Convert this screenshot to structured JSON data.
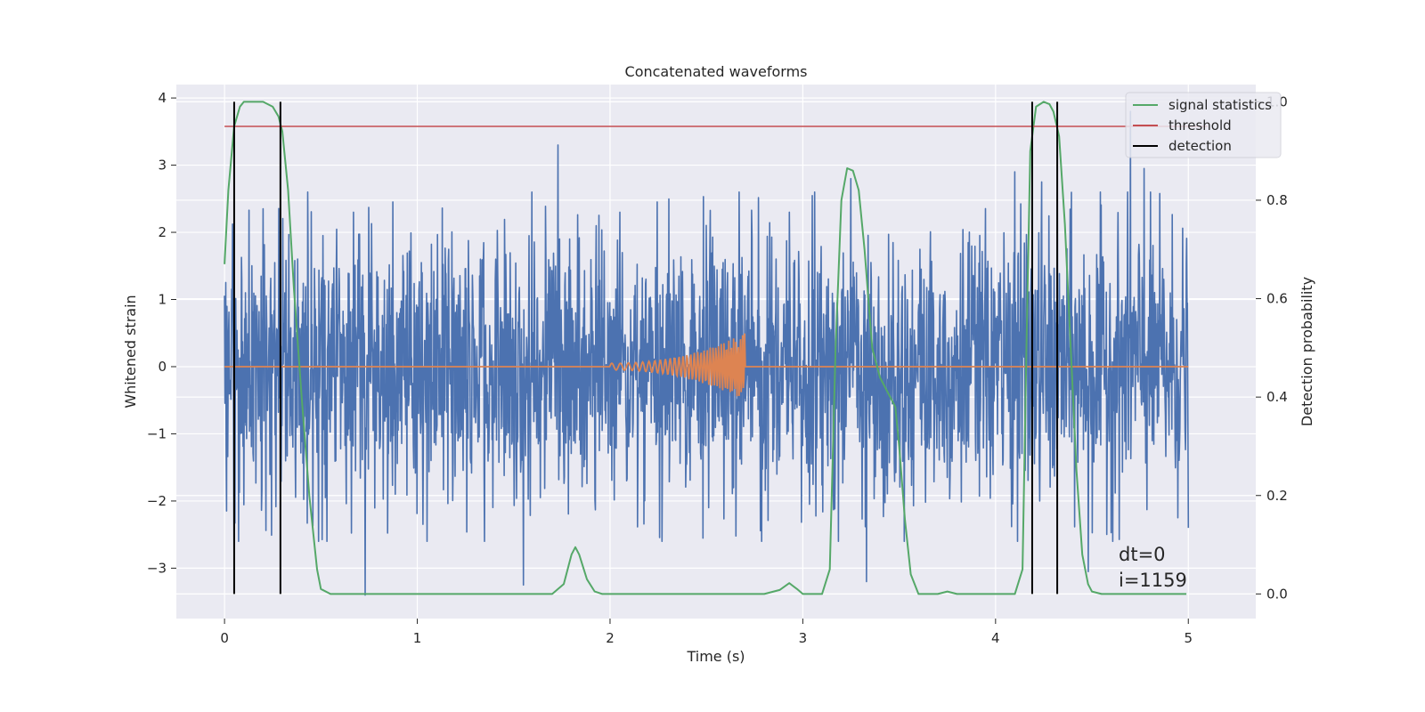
{
  "chart_data": {
    "type": "line",
    "title": "Concatenated waveforms",
    "xlabel": "Time (s)",
    "ylabel": "Whitened strain",
    "y2label": "Detection probability",
    "xlim": [
      -0.25,
      5.35
    ],
    "ylim": [
      -3.75,
      4.2
    ],
    "y2lim": [
      -0.05,
      1.035
    ],
    "x_ticks": [
      0,
      1,
      2,
      3,
      4,
      5
    ],
    "x_tick_labels": [
      "0",
      "1",
      "2",
      "3",
      "4",
      "5"
    ],
    "y_ticks": [
      -3,
      -2,
      -1,
      0,
      1,
      2,
      3,
      4
    ],
    "y_tick_labels": [
      "−3",
      "−2",
      "−1",
      "0",
      "1",
      "2",
      "3",
      "4"
    ],
    "y2_ticks": [
      0.0,
      0.2,
      0.4,
      0.6,
      0.8,
      1.0
    ],
    "y2_tick_labels": [
      "0.0",
      "0.2",
      "0.4",
      "0.6",
      "0.8",
      "1.0"
    ],
    "grid": true,
    "legend_position": "top-right",
    "legend": [
      "signal statistics",
      "threshold",
      "detection"
    ],
    "annotation": {
      "line1": "dt=0",
      "line2": "i=1159"
    },
    "colors": {
      "background": "#eaeaf2",
      "grid": "#ffffff",
      "strain": "#4c72b0",
      "injected": "#dd8452",
      "statistics": "#55a868",
      "threshold": "#c44e52",
      "detection": "#000000"
    },
    "series": [
      {
        "name": "",
        "axis": "left",
        "kind": "noise",
        "x_range": [
          0,
          5
        ],
        "samples": 2400,
        "spread": 1.0,
        "peaks": [
          [
            0.2,
            2.35
          ],
          [
            0.67,
            2.3
          ],
          [
            0.73,
            -3.4
          ],
          [
            1.73,
            3.3
          ],
          [
            2.05,
            2.3
          ],
          [
            2.93,
            2.3
          ],
          [
            3.25,
            2.8
          ],
          [
            4.1,
            2.9
          ],
          [
            4.24,
            2.75
          ],
          [
            4.7,
            3.8
          ],
          [
            4.77,
            2.95
          ],
          [
            1.55,
            -3.25
          ],
          [
            0.05,
            -3.1
          ],
          [
            3.33,
            -3.2
          ],
          [
            4.48,
            -3.05
          ],
          [
            5.0,
            -2.4
          ]
        ]
      },
      {
        "name": "",
        "axis": "left",
        "kind": "chirp",
        "x_range": [
          0,
          5
        ],
        "chirp_start": 2.0,
        "chirp_end": 2.7,
        "max_amplitude": 0.5
      },
      {
        "name": "signal statistics",
        "axis": "right",
        "kind": "line",
        "x": [
          0.0,
          0.02,
          0.05,
          0.08,
          0.1,
          0.15,
          0.2,
          0.25,
          0.28,
          0.3,
          0.33,
          0.36,
          0.4,
          0.44,
          0.48,
          0.5,
          0.55,
          1.7,
          1.76,
          1.8,
          1.82,
          1.84,
          1.88,
          1.92,
          1.96,
          2.0,
          2.8,
          2.88,
          2.93,
          2.97,
          3.0,
          3.1,
          3.14,
          3.17,
          3.2,
          3.23,
          3.26,
          3.29,
          3.32,
          3.36,
          3.4,
          3.44,
          3.48,
          3.5,
          3.53,
          3.56,
          3.6,
          3.7,
          3.75,
          3.8,
          3.9,
          4.1,
          4.14,
          4.16,
          4.18,
          4.21,
          4.25,
          4.28,
          4.3,
          4.33,
          4.36,
          4.39,
          4.42,
          4.45,
          4.48,
          4.5,
          4.55,
          4.6,
          4.99
        ],
        "values": [
          0.67,
          0.82,
          0.95,
          0.99,
          1.0,
          1.0,
          1.0,
          0.99,
          0.97,
          0.94,
          0.82,
          0.62,
          0.4,
          0.2,
          0.05,
          0.01,
          0.0,
          0.0,
          0.02,
          0.08,
          0.095,
          0.08,
          0.03,
          0.005,
          0.0,
          0.0,
          0.0,
          0.008,
          0.022,
          0.01,
          0.0,
          0.0,
          0.05,
          0.5,
          0.8,
          0.865,
          0.86,
          0.82,
          0.7,
          0.5,
          0.44,
          0.41,
          0.38,
          0.3,
          0.15,
          0.04,
          0.0,
          0.0,
          0.005,
          0.0,
          0.0,
          0.0,
          0.05,
          0.5,
          0.9,
          0.99,
          1.0,
          0.995,
          0.98,
          0.93,
          0.75,
          0.5,
          0.25,
          0.08,
          0.02,
          0.005,
          0.0,
          0.0,
          0.0
        ]
      },
      {
        "name": "threshold",
        "axis": "right",
        "kind": "hline",
        "value": 0.95,
        "x_range": [
          0,
          5.1
        ]
      },
      {
        "name": "detection",
        "axis": "right",
        "kind": "vlines",
        "x": [
          0.05,
          0.29,
          4.19,
          4.32
        ],
        "y_range": [
          0.0,
          1.0
        ]
      }
    ]
  }
}
